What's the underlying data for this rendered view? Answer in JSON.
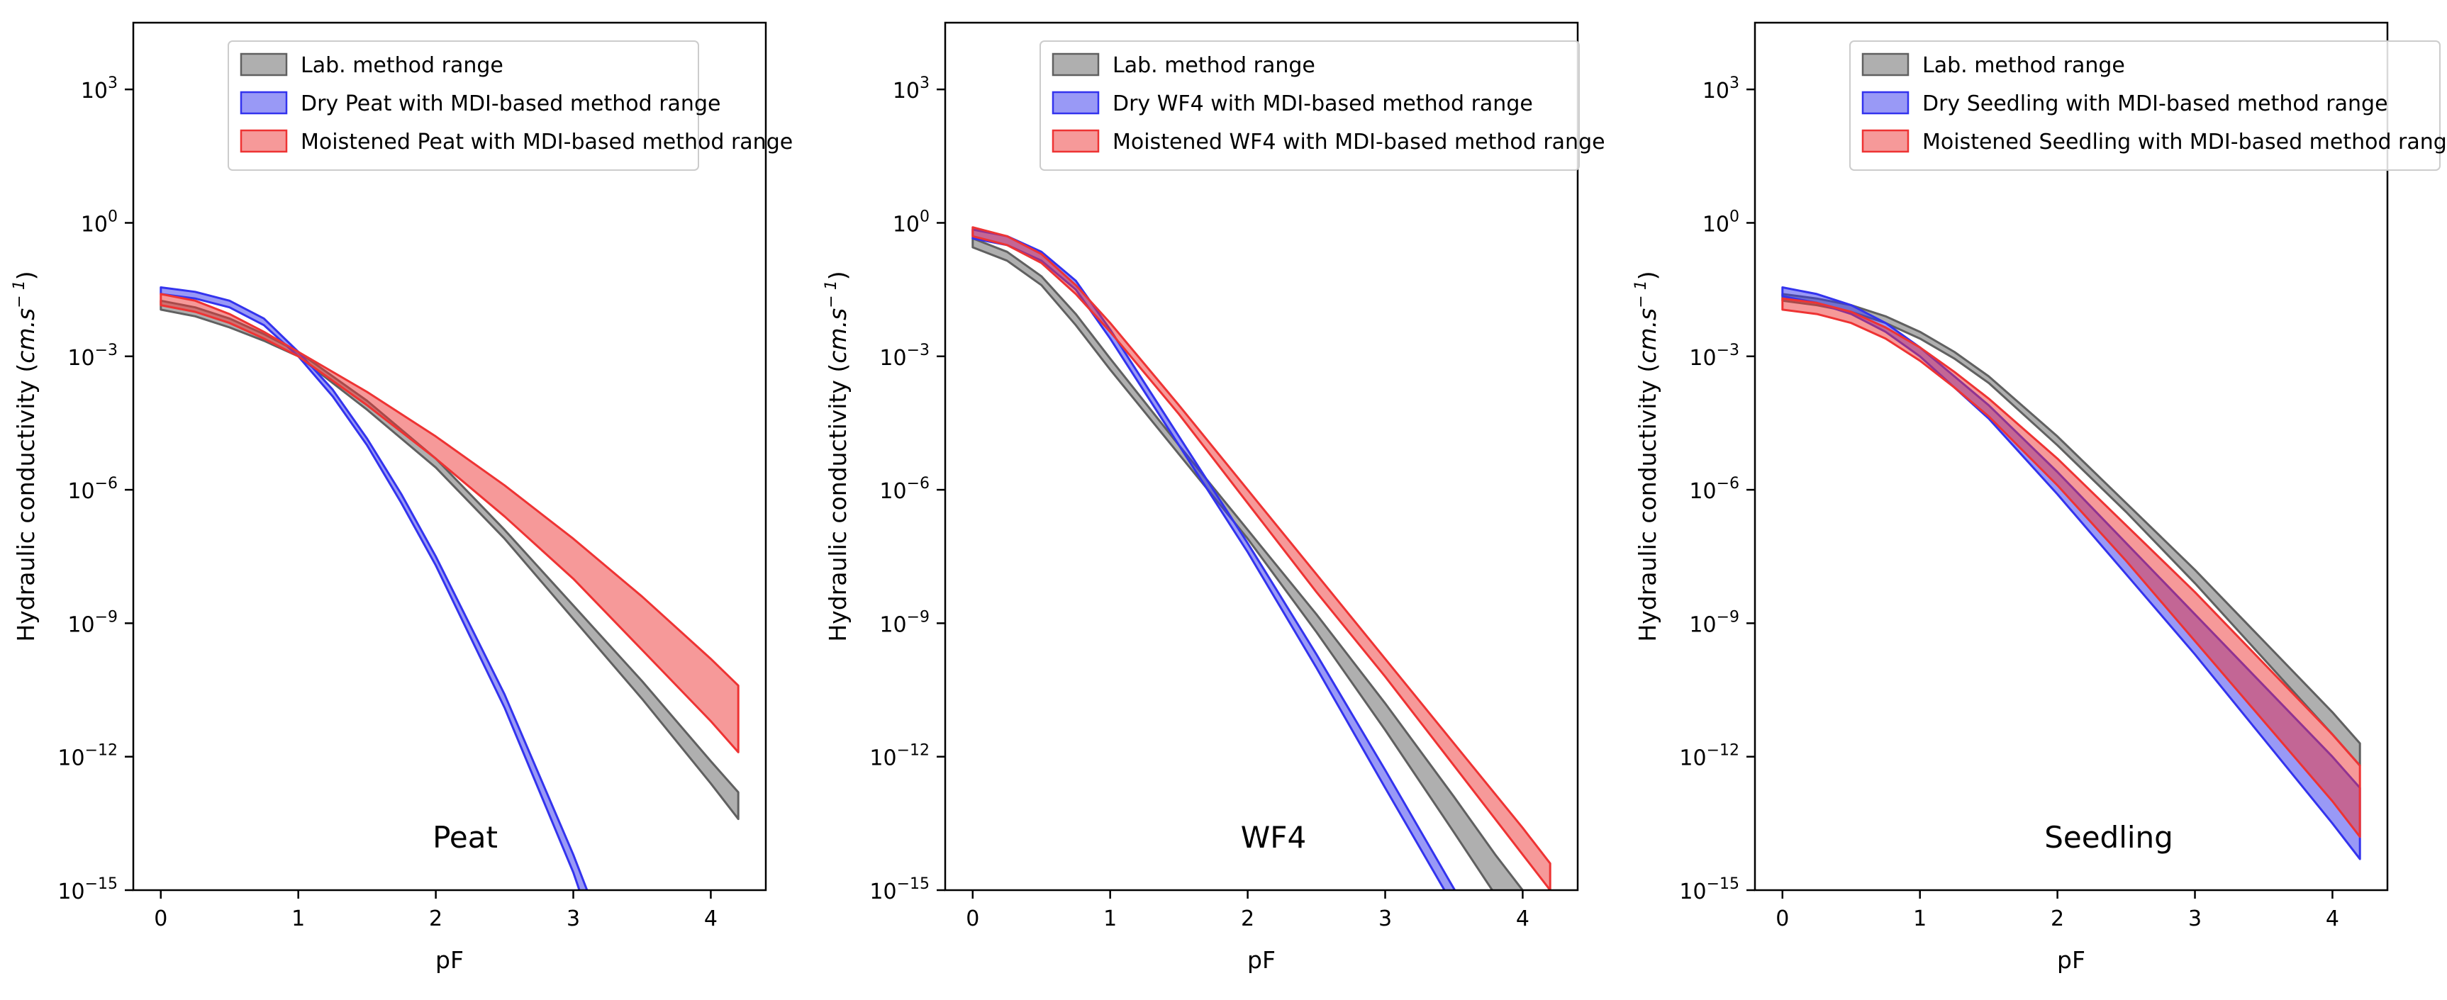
{
  "chart_data": [
    {
      "type": "area",
      "panel": "Peat",
      "ylabel": "Hydraulic conductivity ($cm.s^-1$)",
      "ylabel_text": "Hydraulic conductivity (",
      "ylabel_math": "cm.s",
      "ylabel_exp": "− 1",
      "ylabel_close": ")",
      "xlabel": "pF",
      "xlim": [
        -0.2,
        4.4
      ],
      "ylim_log10": [
        -15,
        4.5
      ],
      "y_scale": "log",
      "x_ticks": [
        "0",
        "1",
        "2",
        "3",
        "4"
      ],
      "y_ticks": [
        {
          "base": "10",
          "exp": "3"
        },
        {
          "base": "10",
          "exp": "0"
        },
        {
          "base": "10",
          "exp": "−3"
        },
        {
          "base": "10",
          "exp": "−6"
        },
        {
          "base": "10",
          "exp": "−9"
        },
        {
          "base": "10",
          "exp": "−12"
        },
        {
          "base": "10",
          "exp": "−15"
        }
      ],
      "legend_position": "upper-center",
      "series": [
        {
          "name": "Lab. method range",
          "color": "#606060",
          "x": [
            0,
            0.25,
            0.5,
            0.75,
            1.0,
            1.5,
            2.0,
            2.5,
            3.0,
            3.5,
            4.0,
            4.2
          ],
          "lower": [
            -1.95,
            -2.1,
            -2.35,
            -2.65,
            -3.0,
            -4.2,
            -5.5,
            -7.1,
            -8.9,
            -10.7,
            -12.6,
            -13.4
          ],
          "upper": [
            -1.75,
            -1.9,
            -2.15,
            -2.5,
            -2.9,
            -4.0,
            -5.3,
            -6.9,
            -8.6,
            -10.3,
            -12.1,
            -12.8
          ]
        },
        {
          "name": "Dry Peat with MDI-based method range",
          "color": "#3333ee",
          "x": [
            0,
            0.25,
            0.5,
            0.75,
            1.0,
            1.25,
            1.5,
            1.75,
            2.0,
            2.5,
            3.0,
            3.1
          ],
          "lower": [
            -1.6,
            -1.7,
            -1.9,
            -2.3,
            -3.0,
            -3.9,
            -5.0,
            -6.3,
            -7.7,
            -10.9,
            -14.6,
            -15.5
          ],
          "upper": [
            -1.45,
            -1.55,
            -1.75,
            -2.15,
            -2.9,
            -3.75,
            -4.85,
            -6.1,
            -7.5,
            -10.6,
            -14.2,
            -15.0
          ]
        },
        {
          "name": "Moistened Peat with MDI-based method range",
          "color": "#ee3333",
          "x": [
            0,
            0.25,
            0.5,
            0.75,
            1.0,
            1.5,
            2.0,
            2.5,
            3.0,
            3.5,
            4.0,
            4.2
          ],
          "lower": [
            -1.85,
            -2.0,
            -2.25,
            -2.6,
            -3.0,
            -4.1,
            -5.3,
            -6.6,
            -8.0,
            -9.6,
            -11.2,
            -11.9
          ],
          "upper": [
            -1.6,
            -1.75,
            -2.05,
            -2.45,
            -2.9,
            -3.8,
            -4.8,
            -5.9,
            -7.1,
            -8.4,
            -9.8,
            -10.4
          ]
        }
      ]
    },
    {
      "type": "area",
      "panel": "WF4",
      "ylabel": "Hydraulic conductivity ($cm.s^-1$)",
      "ylabel_text": "Hydraulic conductivity (",
      "ylabel_math": "cm.s",
      "ylabel_exp": "− 1",
      "ylabel_close": ")",
      "xlabel": "pF",
      "xlim": [
        -0.2,
        4.4
      ],
      "ylim_log10": [
        -15,
        4.5
      ],
      "y_scale": "log",
      "x_ticks": [
        "0",
        "1",
        "2",
        "3",
        "4"
      ],
      "y_ticks": [
        {
          "base": "10",
          "exp": "3"
        },
        {
          "base": "10",
          "exp": "0"
        },
        {
          "base": "10",
          "exp": "−3"
        },
        {
          "base": "10",
          "exp": "−6"
        },
        {
          "base": "10",
          "exp": "−9"
        },
        {
          "base": "10",
          "exp": "−12"
        },
        {
          "base": "10",
          "exp": "−15"
        }
      ],
      "legend_position": "upper-center",
      "series": [
        {
          "name": "Lab. method range",
          "color": "#606060",
          "x": [
            0,
            0.25,
            0.5,
            0.75,
            1.0,
            1.5,
            2.0,
            2.5,
            3.0,
            3.5,
            3.8,
            4.0
          ],
          "lower": [
            -0.55,
            -0.85,
            -1.4,
            -2.3,
            -3.3,
            -5.2,
            -7.1,
            -9.2,
            -11.4,
            -13.7,
            -15.1,
            -16.0
          ],
          "upper": [
            -0.35,
            -0.65,
            -1.2,
            -2.05,
            -3.05,
            -5.0,
            -6.9,
            -8.8,
            -10.8,
            -12.9,
            -14.2,
            -15.0
          ]
        },
        {
          "name": "Dry WF4 with MDI-based method range",
          "color": "#3333ee",
          "x": [
            0,
            0.25,
            0.5,
            0.75,
            1.0,
            1.5,
            2.0,
            2.5,
            3.0,
            3.45,
            3.6
          ],
          "lower": [
            -0.35,
            -0.5,
            -0.85,
            -1.5,
            -2.6,
            -5.0,
            -7.4,
            -10.0,
            -12.7,
            -15.1,
            -15.9
          ],
          "upper": [
            -0.15,
            -0.3,
            -0.65,
            -1.3,
            -2.4,
            -4.8,
            -7.2,
            -9.7,
            -12.3,
            -14.7,
            -15.5
          ]
        },
        {
          "name": "Moistened WF4 with MDI-based method range",
          "color": "#ee3333",
          "x": [
            0,
            0.25,
            0.5,
            0.75,
            1.0,
            1.5,
            2.0,
            2.5,
            3.0,
            3.5,
            4.0,
            4.2
          ],
          "lower": [
            -0.3,
            -0.5,
            -0.9,
            -1.6,
            -2.45,
            -4.3,
            -6.3,
            -8.3,
            -10.2,
            -12.2,
            -14.2,
            -15.0
          ],
          "upper": [
            -0.1,
            -0.3,
            -0.7,
            -1.4,
            -2.25,
            -4.1,
            -6.0,
            -7.9,
            -9.8,
            -11.7,
            -13.6,
            -14.4
          ]
        }
      ]
    },
    {
      "type": "area",
      "panel": "Seedling",
      "ylabel": "Hydraulic conductivity ($cm.s^-1$)",
      "ylabel_text": "Hydraulic conductivity (",
      "ylabel_math": "cm.s",
      "ylabel_exp": "− 1",
      "ylabel_close": ")",
      "xlabel": "pF",
      "xlim": [
        -0.2,
        4.4
      ],
      "ylim_log10": [
        -15,
        4.5
      ],
      "y_scale": "log",
      "x_ticks": [
        "0",
        "1",
        "2",
        "3",
        "4"
      ],
      "y_ticks": [
        {
          "base": "10",
          "exp": "3"
        },
        {
          "base": "10",
          "exp": "0"
        },
        {
          "base": "10",
          "exp": "−3"
        },
        {
          "base": "10",
          "exp": "−6"
        },
        {
          "base": "10",
          "exp": "−9"
        },
        {
          "base": "10",
          "exp": "−12"
        },
        {
          "base": "10",
          "exp": "−15"
        }
      ],
      "legend_position": "upper-center",
      "series": [
        {
          "name": "Lab. method range",
          "color": "#606060",
          "x": [
            0,
            0.25,
            0.5,
            0.75,
            1.0,
            1.25,
            1.5,
            2.0,
            2.5,
            3.0,
            3.5,
            4.0,
            4.2
          ],
          "lower": [
            -1.75,
            -1.85,
            -2.0,
            -2.25,
            -2.6,
            -3.05,
            -3.6,
            -5.0,
            -6.5,
            -8.1,
            -9.8,
            -11.5,
            -12.2
          ],
          "upper": [
            -1.6,
            -1.7,
            -1.85,
            -2.1,
            -2.45,
            -2.9,
            -3.45,
            -4.8,
            -6.3,
            -7.8,
            -9.4,
            -11.0,
            -11.7
          ]
        },
        {
          "name": "Dry Seedling with MDI-based method range",
          "color": "#3333ee",
          "x": [
            0,
            0.25,
            0.5,
            0.75,
            1.0,
            1.25,
            1.5,
            2.0,
            2.5,
            3.0,
            3.5,
            4.0,
            4.2
          ],
          "lower": [
            -1.65,
            -1.8,
            -2.05,
            -2.45,
            -3.0,
            -3.7,
            -4.4,
            -6.1,
            -7.9,
            -9.7,
            -11.6,
            -13.5,
            -14.3
          ],
          "upper": [
            -1.45,
            -1.6,
            -1.85,
            -2.25,
            -2.8,
            -3.45,
            -4.1,
            -5.6,
            -7.2,
            -8.8,
            -10.4,
            -12.0,
            -12.7
          ]
        },
        {
          "name": "Moistened Seedling with MDI-based method range",
          "color": "#ee3333",
          "x": [
            0,
            0.25,
            0.5,
            0.75,
            1.0,
            1.25,
            1.5,
            2.0,
            2.5,
            3.0,
            3.5,
            4.0,
            4.2
          ],
          "lower": [
            -1.95,
            -2.05,
            -2.25,
            -2.6,
            -3.1,
            -3.7,
            -4.35,
            -5.9,
            -7.6,
            -9.4,
            -11.2,
            -13.0,
            -13.8
          ],
          "upper": [
            -1.7,
            -1.8,
            -2.0,
            -2.35,
            -2.8,
            -3.35,
            -3.95,
            -5.3,
            -6.8,
            -8.3,
            -9.9,
            -11.5,
            -12.2
          ]
        }
      ]
    }
  ]
}
